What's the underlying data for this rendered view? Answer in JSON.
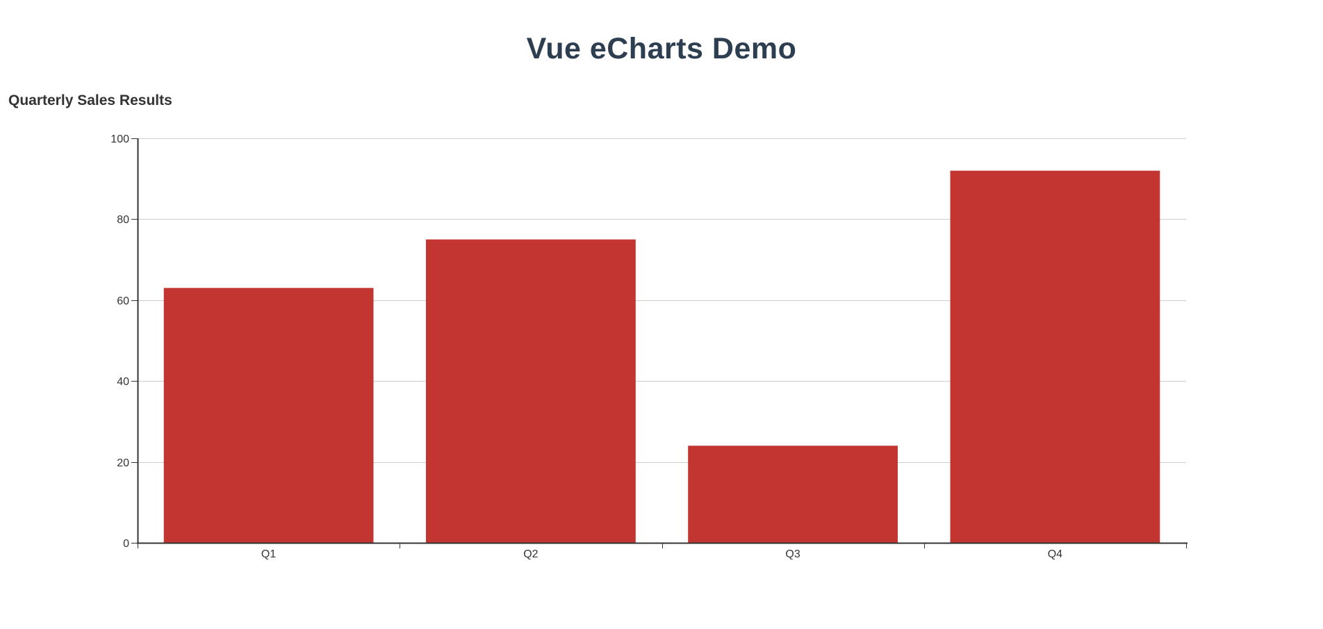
{
  "page": {
    "title": "Vue eCharts Demo",
    "title_color": "#2c3e50",
    "background": "#ffffff"
  },
  "chart_data": {
    "type": "bar",
    "title": "Quarterly Sales Results",
    "categories": [
      "Q1",
      "Q2",
      "Q3",
      "Q4"
    ],
    "values": [
      63,
      75,
      24,
      92
    ],
    "xlabel": "",
    "ylabel": "",
    "ylim": [
      0,
      100
    ],
    "y_ticks": [
      0,
      20,
      40,
      60,
      80,
      100
    ],
    "y_tick_labels": [
      "0",
      "20",
      "40",
      "60",
      "80",
      "100"
    ],
    "grid": true,
    "legend": false,
    "bar_color": "#c23531",
    "axis_color": "#333333",
    "grid_color": "#cccccc",
    "tick_label_color": "#333333",
    "chart_title_color": "#333333"
  }
}
